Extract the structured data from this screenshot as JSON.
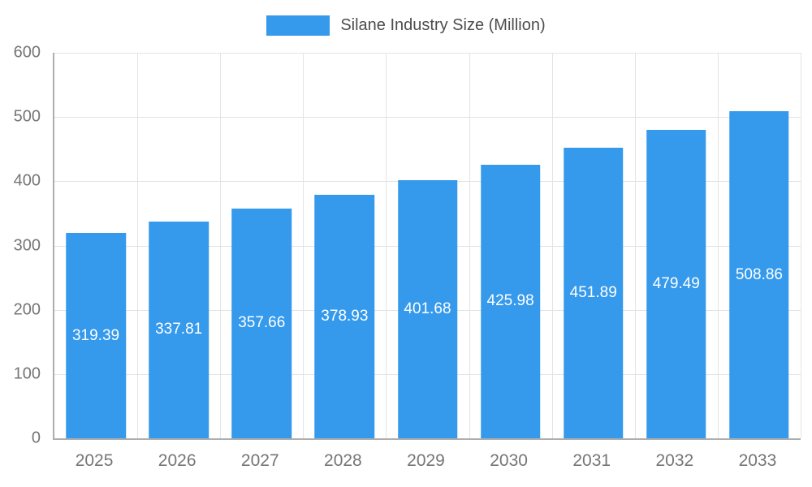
{
  "chart_data": {
    "type": "bar",
    "title": "Silane Industry Size (Million)",
    "categories": [
      "2025",
      "2026",
      "2027",
      "2028",
      "2029",
      "2030",
      "2031",
      "2032",
      "2033"
    ],
    "values": [
      319.39,
      337.81,
      357.66,
      378.93,
      401.68,
      425.98,
      451.89,
      479.49,
      508.86
    ],
    "xlabel": "",
    "ylabel": "",
    "ylim": [
      0,
      600
    ],
    "yticks": [
      0,
      100,
      200,
      300,
      400,
      500,
      600
    ],
    "grid": true,
    "legend_position": "top",
    "bar_color": "#3599EC",
    "bar_label_color": "#ffffff",
    "grid_color": "#e3e3e3",
    "axis_color": "#aeaeae",
    "tick_color": "#757575",
    "legend_text_color": "#4d4d4d"
  }
}
